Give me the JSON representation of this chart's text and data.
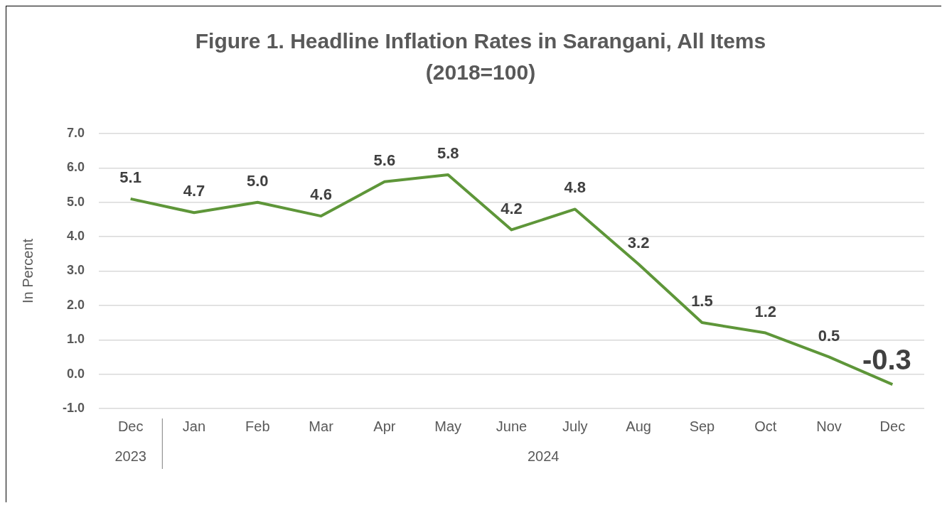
{
  "chart_data": {
    "type": "line",
    "title": "Figure 1. Headline Inflation Rates in Sarangani, All Items",
    "subtitle": "(2018=100)",
    "ylabel": "In Percent",
    "categories": [
      "Dec",
      "Jan",
      "Feb",
      "Mar",
      "Apr",
      "May",
      "June",
      "July",
      "Aug",
      "Sep",
      "Oct",
      "Nov",
      "Dec"
    ],
    "series": [
      {
        "color": "#5e9639",
        "values": [
          5.1,
          4.7,
          5.0,
          4.6,
          5.6,
          5.8,
          4.2,
          4.8,
          3.2,
          1.5,
          1.2,
          0.5,
          -0.3
        ],
        "value_labels": [
          "5.1",
          "4.7",
          "5.0",
          "4.6",
          "5.6",
          "5.8",
          "4.2",
          "4.8",
          "3.2",
          "1.5",
          "1.2",
          "0.5",
          "-0.3"
        ]
      }
    ],
    "ylim": [
      -1,
      7
    ],
    "yticks": [
      {
        "value": -1,
        "label": "-1.0"
      },
      {
        "value": 0,
        "label": "0.0"
      },
      {
        "value": 1,
        "label": "1.0"
      },
      {
        "value": 2,
        "label": "2.0"
      },
      {
        "value": 3,
        "label": "3.0"
      },
      {
        "value": 4,
        "label": "4.0"
      },
      {
        "value": 5,
        "label": "5.0"
      },
      {
        "value": 6,
        "label": "6.0"
      },
      {
        "value": 7,
        "label": "7.0"
      }
    ],
    "grid": "y",
    "legend": false,
    "marker": "none",
    "line_style": "solid",
    "annotations": [
      "2023",
      "2024"
    ]
  }
}
